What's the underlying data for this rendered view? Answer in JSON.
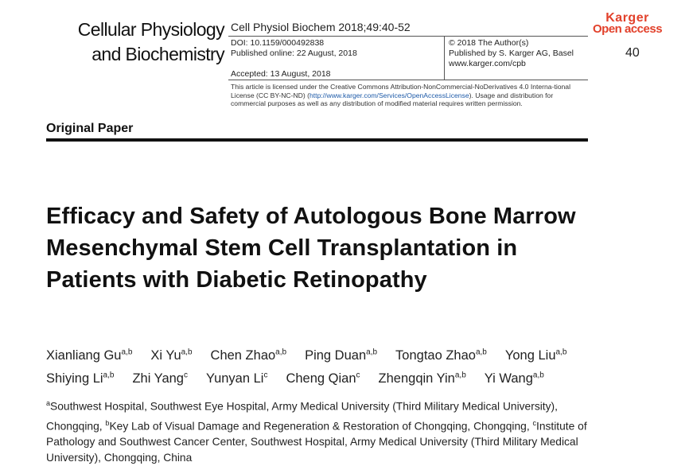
{
  "journal": {
    "line1": "Cellular Physiology",
    "line2": "and Biochemistry"
  },
  "meta": {
    "citation": "Cell Physiol Biochem 2018;49:40-52",
    "doi": "DOI: 10.1159/000492838",
    "published": "Published online: 22 August, 2018",
    "accepted": "Accepted: 13 August, 2018",
    "copyright": "© 2018 The Author(s)",
    "publisher": "Published by S. Karger AG, Basel",
    "website": "www.karger.com/cpb",
    "license_pre": "This article is licensed under the Creative Commons Attribution-NonCommercial-NoDerivatives 4.0 Interna-tional License (CC BY-NC-ND) (",
    "license_link": "http://www.karger.com/Services/OpenAccessLicense",
    "license_post": "). Usage and distribution for commercial purposes as well as any distribution of modified material requires written permission."
  },
  "brand": {
    "line1": "Karger",
    "line2": "Open access"
  },
  "page_number": "40",
  "section_label": "Original Paper",
  "title": "Efficacy and Safety of Autologous Bone Marrow Mesenchymal Stem Cell Transplantation in Patients with Diabetic Retinopathy",
  "authors": [
    [
      {
        "name": "Xianliang Gu",
        "sup": "a,b"
      },
      {
        "name": "Xi Yu",
        "sup": "a,b"
      },
      {
        "name": "Chen Zhao",
        "sup": "a,b"
      },
      {
        "name": "Ping Duan",
        "sup": "a,b"
      },
      {
        "name": "Tongtao Zhao",
        "sup": "a,b"
      },
      {
        "name": "Yong Liu",
        "sup": "a,b"
      }
    ],
    [
      {
        "name": "Shiying Li",
        "sup": "a,b"
      },
      {
        "name": "Zhi Yang",
        "sup": "c"
      },
      {
        "name": "Yunyan Li",
        "sup": "c"
      },
      {
        "name": "Cheng Qian",
        "sup": "c"
      },
      {
        "name": "Zhengqin Yin",
        "sup": "a,b"
      },
      {
        "name": "Yi Wang",
        "sup": "a,b"
      }
    ]
  ],
  "affiliations": [
    {
      "sup": "a",
      "text": "Southwest Hospital, Southwest Eye Hospital, Army Medical University (Third Military Medical University), Chongqing, "
    },
    {
      "sup": "b",
      "text": "Key Lab of Visual Damage and Regeneration & Restoration of Chongqing, Chongqing, "
    },
    {
      "sup": "c",
      "text": "Institute of Pathology and Southwest Cancer Center, Southwest Hospital, Army Medical University (Third Military Medical University), Chongqing, China"
    }
  ]
}
